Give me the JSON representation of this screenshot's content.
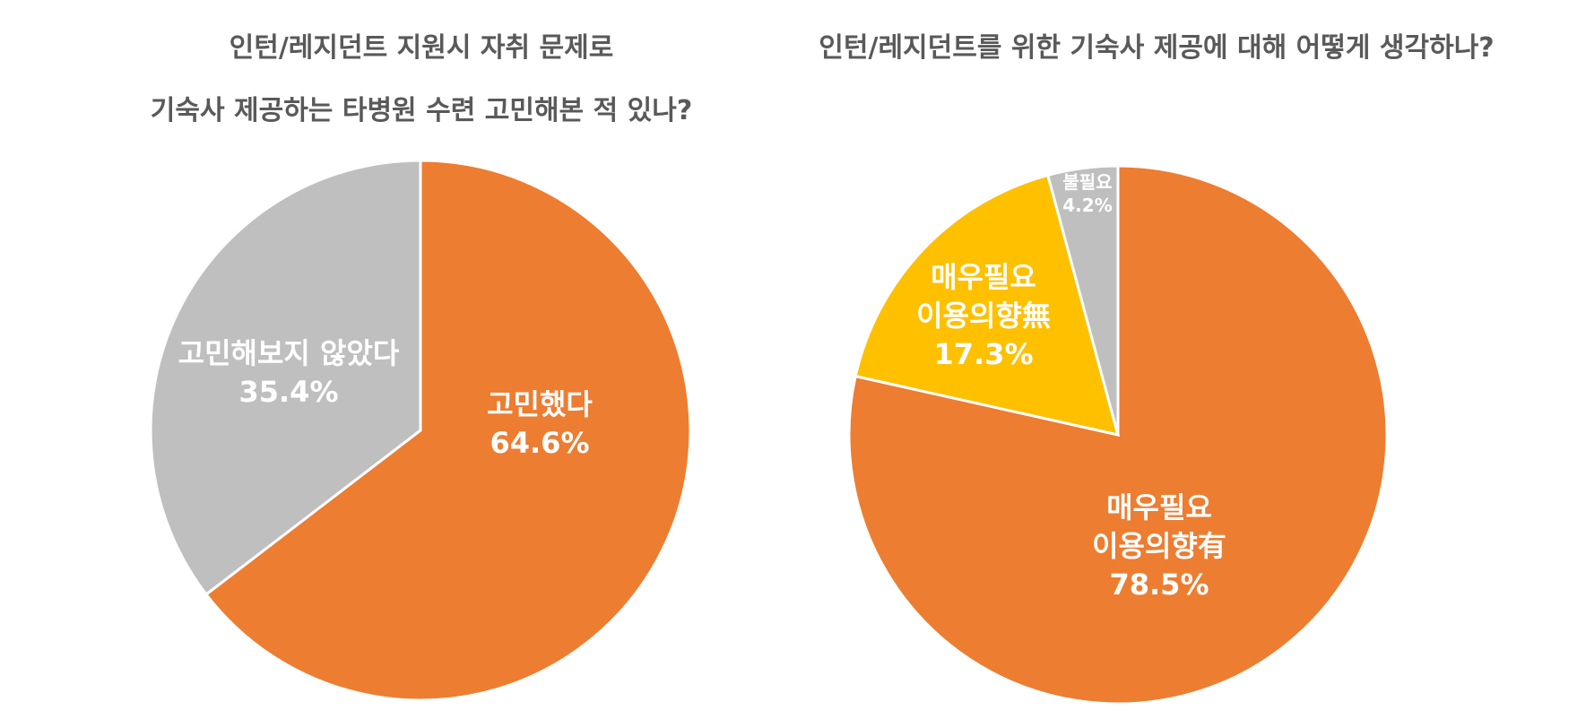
{
  "chart_data": [
    {
      "type": "pie",
      "title": "인턴/레지던트 지원시 자취 문제로 기숙사 제공하는 타병원 수련 고민해본 적 있나?",
      "title_lines": [
        "인턴/레지던트 지원시 자취 문제로",
        "기숙사 제공하는 타병원 수련 고민해본 적 있나?"
      ],
      "slices": [
        {
          "label": "고민했다",
          "value": 64.6,
          "value_label": "64.6%",
          "color": "#ED7D31"
        },
        {
          "label": "고민해보지 않았다",
          "value": 35.4,
          "value_label": "35.4%",
          "color": "#BFBFBF"
        }
      ]
    },
    {
      "type": "pie",
      "title": "인턴/레지던트를 위한 기숙사 제공에 대해 어떻게 생각하나?",
      "slices": [
        {
          "label": "매우필요 이용의향有",
          "label_lines": [
            "매우필요",
            "이용의향有"
          ],
          "value": 78.5,
          "value_label": "78.5%",
          "color": "#ED7D31"
        },
        {
          "label": "매우필요 이용의향無",
          "label_lines": [
            "매우필요",
            "이용의향無"
          ],
          "value": 17.3,
          "value_label": "17.3%",
          "color": "#FFC000"
        },
        {
          "label": "불필요",
          "label_lines": [
            "불필요"
          ],
          "value": 4.2,
          "value_label": "4.2%",
          "color": "#BFBFBF"
        }
      ]
    }
  ]
}
